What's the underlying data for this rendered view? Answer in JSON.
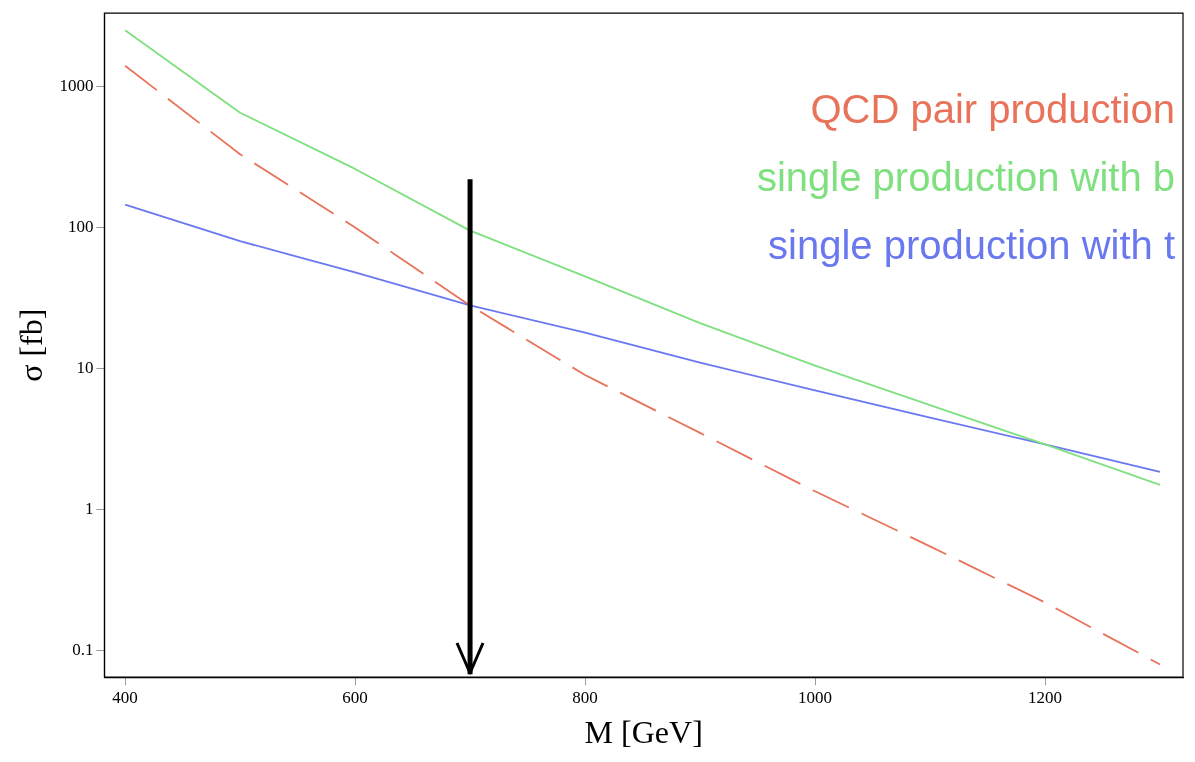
{
  "chart_data": {
    "type": "line",
    "xlabel": "M [GeV]",
    "ylabel": "σ [fb]",
    "log": "y",
    "grid": false,
    "marker": "none",
    "legend": "top right",
    "ref_lines": [
      {
        "axis": "x",
        "value": 700,
        "color": "#000000"
      }
    ],
    "xlim": [
      382,
      1320
    ],
    "xticks": [
      400,
      600,
      800,
      1000,
      1200
    ],
    "ylim": [
      0.065,
      3300
    ],
    "yticks": [
      0.1,
      1,
      10,
      100,
      1000
    ],
    "x": [
      400,
      500,
      600,
      700,
      800,
      900,
      1000,
      1100,
      1200,
      1300
    ],
    "series": [
      {
        "name": "QCD pair production",
        "color": "#e8735a",
        "line_style": "dashed",
        "values": [
          1400,
          330,
          100,
          28,
          9,
          3.5,
          1.35,
          0.55,
          0.22,
          0.08
        ]
      },
      {
        "name": "single production with b",
        "color": "#7fe07f",
        "line_style": "solid",
        "values": [
          2500,
          650,
          260,
          95,
          45,
          21,
          10.5,
          5.5,
          2.9,
          1.5
        ]
      },
      {
        "name": "single production with t",
        "color": "#6a78f0",
        "line_style": "solid",
        "values": [
          145,
          80,
          48,
          28,
          18,
          11,
          7,
          4.5,
          2.9,
          1.85
        ]
      }
    ]
  }
}
